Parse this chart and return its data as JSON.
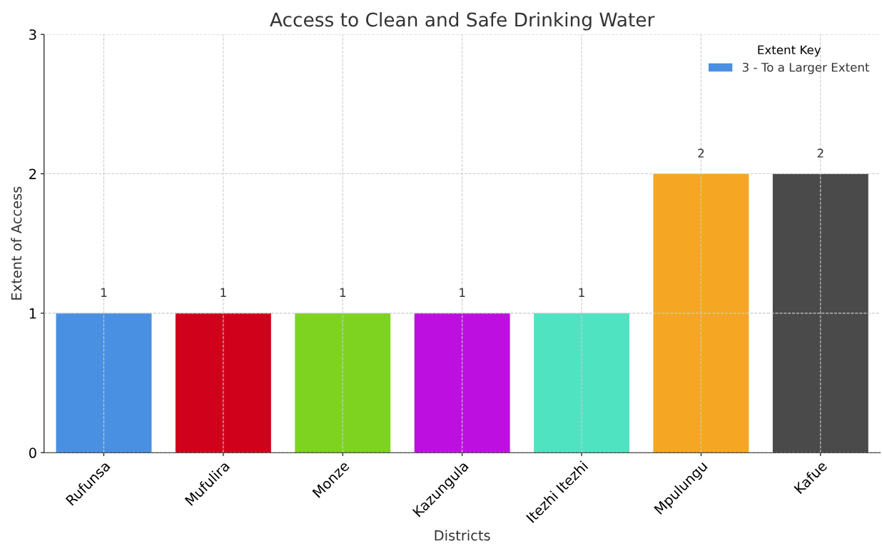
{
  "chart_data": {
    "type": "bar",
    "title": "Access to Clean and Safe Drinking Water",
    "xlabel": "Districts",
    "ylabel": "Extent of Access",
    "legend_title": "Extent Key",
    "categories": [
      "Rufunsa",
      "Mufulira",
      "Monze",
      "Kazungula",
      "Itezhi Itezhi",
      "Mpulungu",
      "Kafue"
    ],
    "series": [
      {
        "name": "3 - To a Larger Extent",
        "color": "#4a90e2",
        "colors": [
          "#4a90e2",
          "#d0021b",
          "#7ed321",
          "#bd10e0",
          "#50e3c2",
          "#f5a623",
          "#4a4a4a"
        ],
        "values": [
          1,
          1,
          1,
          1,
          1,
          2,
          2
        ]
      }
    ],
    "ylim": [
      0,
      3
    ],
    "yticks": [
      0,
      1,
      2,
      3
    ],
    "grid": true,
    "legend": "top right",
    "data_labels": true
  }
}
